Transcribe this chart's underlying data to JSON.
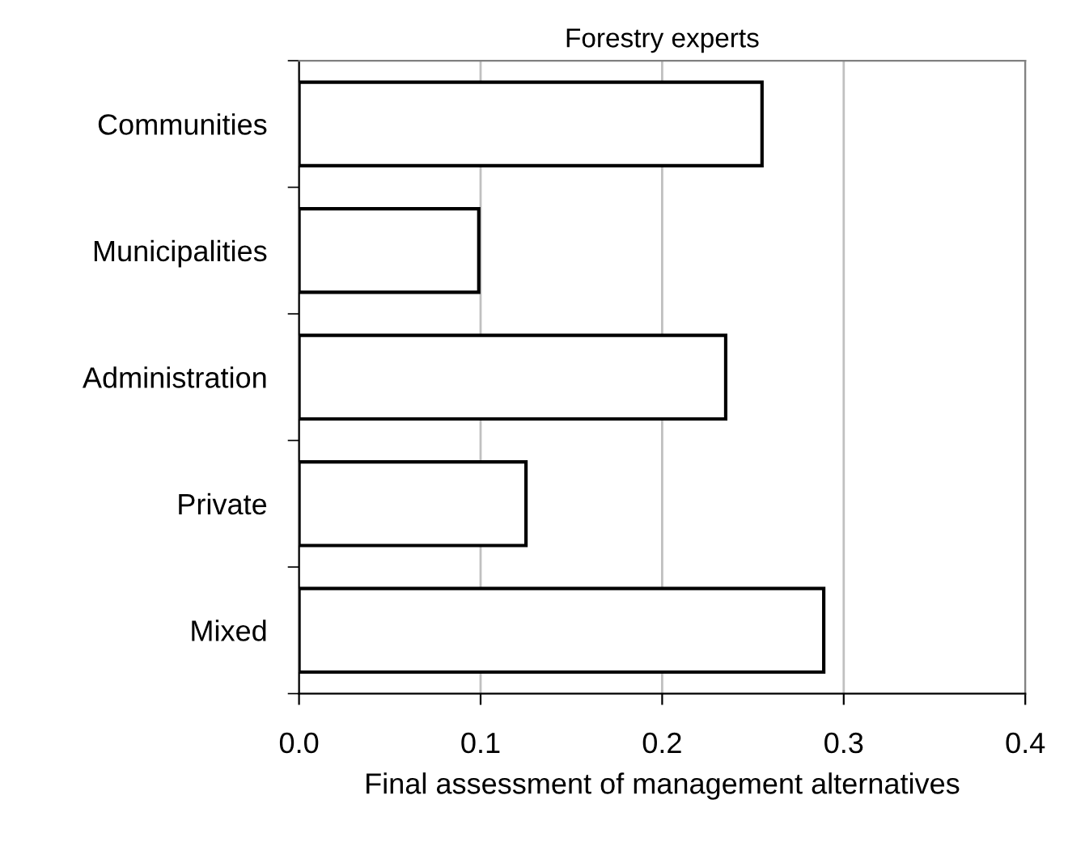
{
  "chart_data": {
    "type": "bar",
    "orientation": "horizontal",
    "title": "Forestry experts",
    "xlabel": "Final assessment of management alternatives",
    "categories": [
      "Communities",
      "Municipalities",
      "Administration",
      "Private",
      "Mixed"
    ],
    "values": [
      0.255,
      0.099,
      0.235,
      0.125,
      0.289
    ],
    "color": "#ffffff",
    "xlim": [
      0,
      0.4
    ],
    "xticks": [
      {
        "value": 0,
        "label": "0.0"
      },
      0.1,
      0.2,
      0.3,
      0.4
    ],
    "grid": "x",
    "legend": false
  }
}
